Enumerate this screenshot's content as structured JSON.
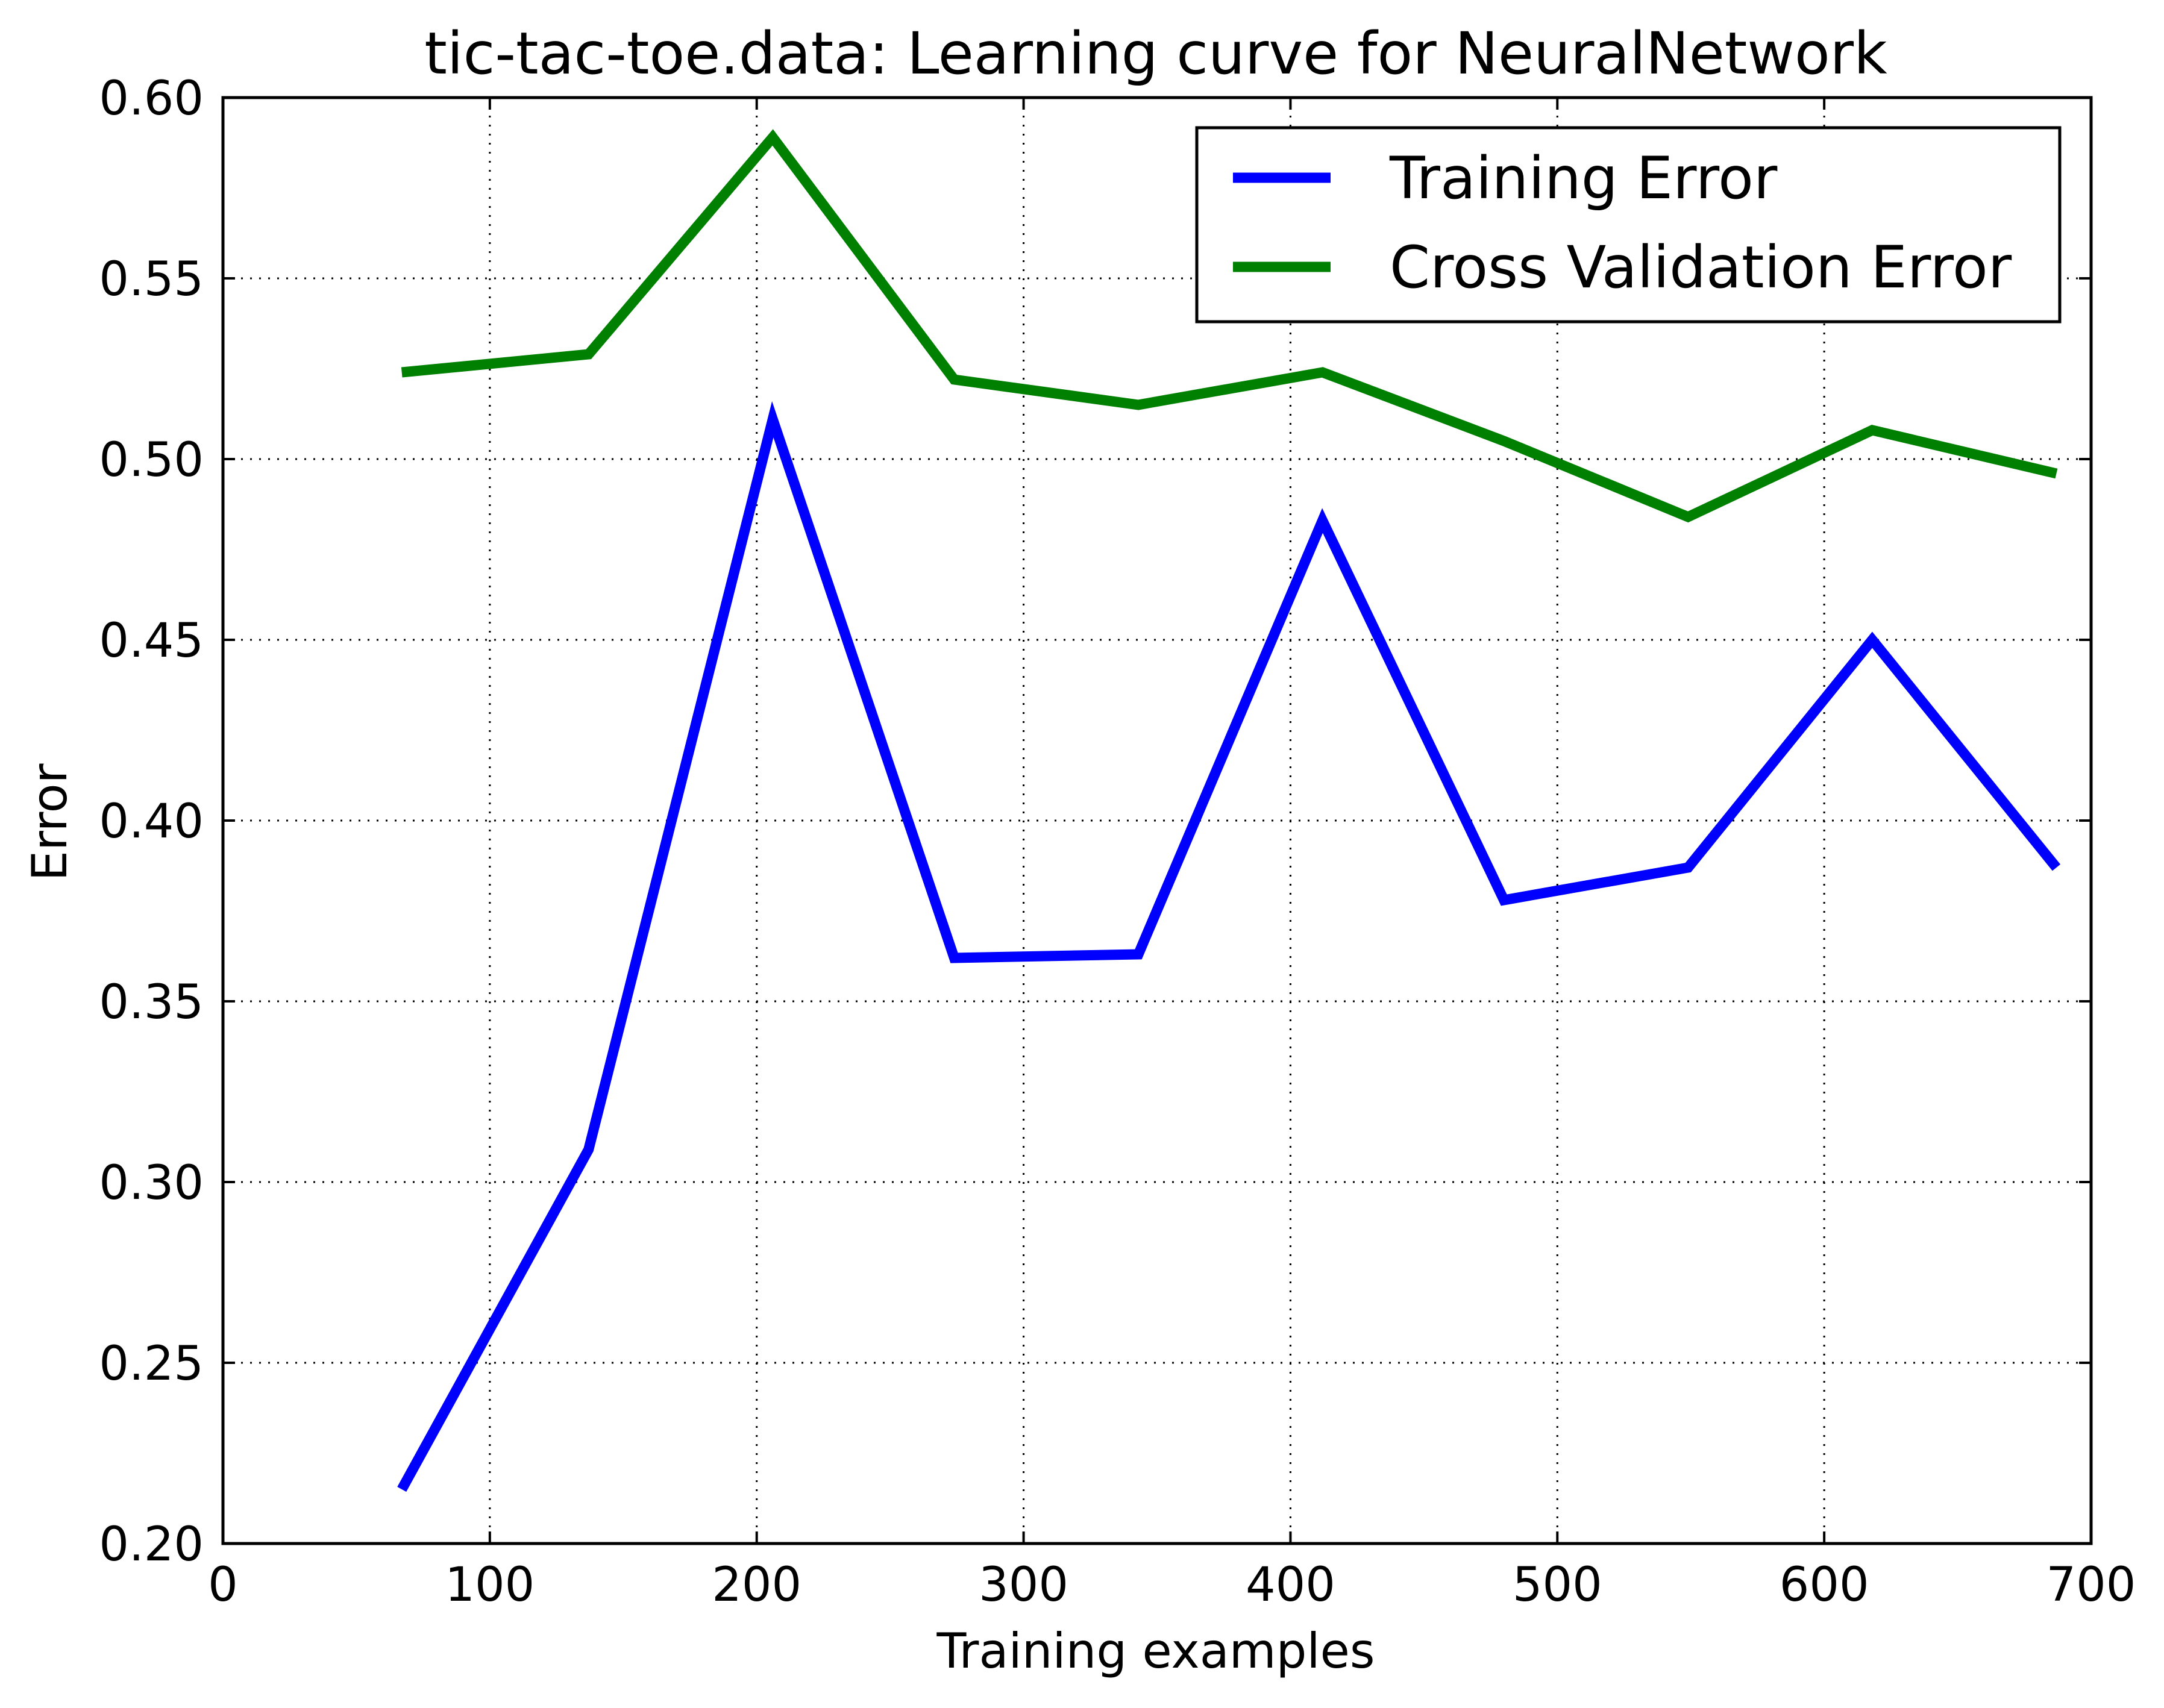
{
  "chart_data": {
    "type": "line",
    "title": "tic-tac-toe.data: Learning curve for NeuralNetwork",
    "xlabel": "Training examples",
    "ylabel": "Error",
    "xlim": [
      0,
      700
    ],
    "ylim": [
      0.2,
      0.6
    ],
    "x_ticks": [
      0,
      100,
      200,
      300,
      400,
      500,
      600,
      700
    ],
    "y_ticks": [
      0.2,
      0.25,
      0.3,
      0.35,
      0.4,
      0.45,
      0.5,
      0.55,
      0.6
    ],
    "x_tick_labels": [
      "0",
      "100",
      "200",
      "300",
      "400",
      "500",
      "600",
      "700"
    ],
    "y_tick_labels": [
      "0.20",
      "0.25",
      "0.30",
      "0.35",
      "0.40",
      "0.45",
      "0.50",
      "0.55",
      "0.60"
    ],
    "grid": true,
    "legend_position": "top-right",
    "x": [
      67,
      137,
      206,
      274,
      343,
      412,
      480,
      549,
      618,
      687
    ],
    "series": [
      {
        "name": "Training Error",
        "color": "#0000ff",
        "values": [
          0.215,
          0.309,
          0.511,
          0.362,
          0.363,
          0.483,
          0.378,
          0.387,
          0.45,
          0.387
        ]
      },
      {
        "name": "Cross Validation Error",
        "color": "#008000",
        "values": [
          0.524,
          0.529,
          0.589,
          0.522,
          0.515,
          0.524,
          0.505,
          0.484,
          0.508,
          0.496
        ]
      }
    ]
  }
}
